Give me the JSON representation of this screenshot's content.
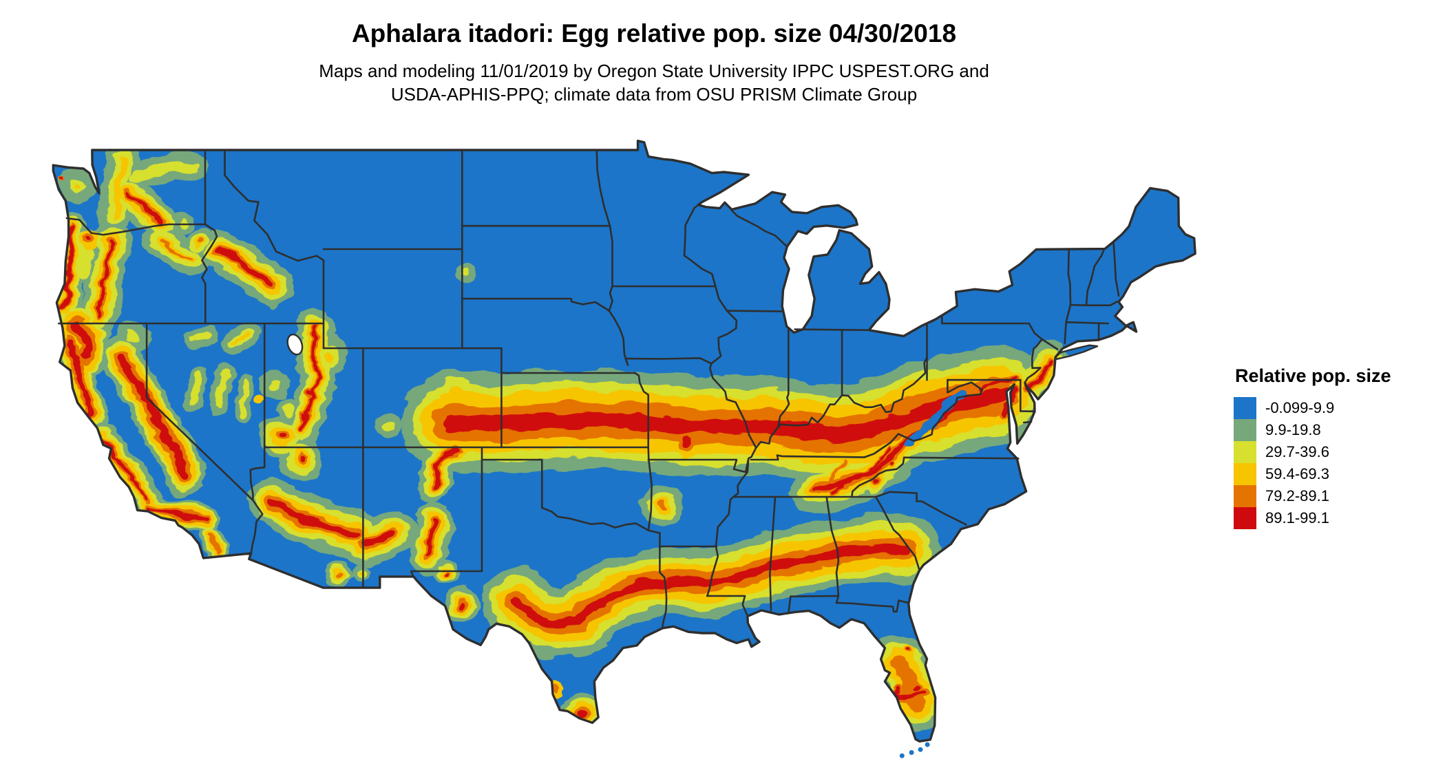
{
  "header": {
    "title": "Aphalara itadori: Egg relative pop. size 04/30/2018",
    "subtitle_line1": "Maps and modeling 11/01/2019 by Oregon State University IPPC USPEST.ORG and",
    "subtitle_line2": "USDA-APHIS-PPQ; climate data from OSU PRISM Climate Group"
  },
  "legend": {
    "title": "Relative pop. size",
    "items": [
      {
        "label": "-0.099-9.9",
        "color": "#1c75c8"
      },
      {
        "label": "9.9-19.8",
        "color": "#76a87b"
      },
      {
        "label": "29.7-39.6",
        "color": "#d7e02f"
      },
      {
        "label": "59.4-69.3",
        "color": "#f6c500"
      },
      {
        "label": "79.2-89.1",
        "color": "#e57300"
      },
      {
        "label": "89.1-99.1",
        "color": "#cf0a0f"
      }
    ]
  },
  "map": {
    "region": "Conterminous United States",
    "border_color": "#2e2e2e",
    "water_color": "#ffffff"
  }
}
